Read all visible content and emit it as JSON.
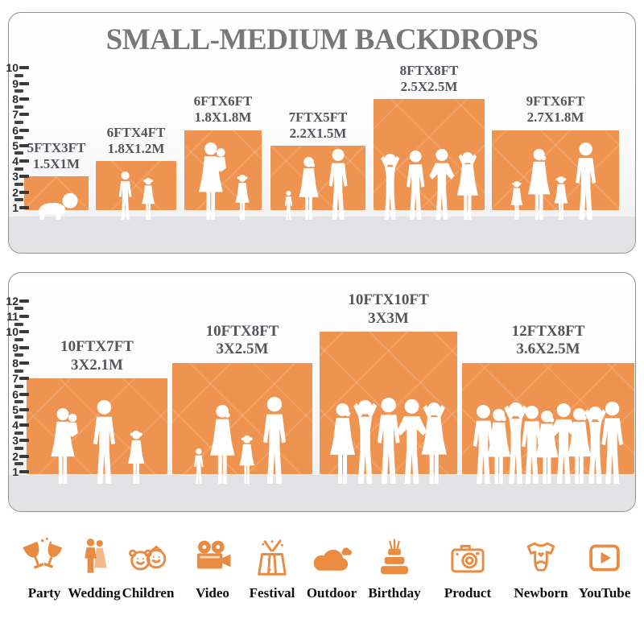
{
  "title": "SMALL-MEDIUM BACKDROPS",
  "colors": {
    "backdrop_orange": "#EF9351",
    "icon_orange": "#E98B41",
    "title_gray": "#77787A",
    "label_gray": "#54555A",
    "silhouette_white": "#FFFFFF"
  },
  "panels": [
    {
      "name": "upper-size-panel",
      "scale_labels": [
        "10",
        "9",
        "8",
        "7",
        "6",
        "5",
        "4",
        "3",
        "2",
        "1"
      ],
      "bars": [
        {
          "size_ft": "5FTX3FT",
          "size_m": "1.5X1M",
          "width_ft": 5,
          "height_ft": 3,
          "figures": "crawling-baby"
        },
        {
          "size_ft": "6FTX4FT",
          "size_m": "1.8X1.2M",
          "width_ft": 6,
          "height_ft": 4,
          "figures": "boy-and-girl"
        },
        {
          "size_ft": "6FTX6FT",
          "size_m": "1.8X1.8M",
          "width_ft": 6,
          "height_ft": 6,
          "figures": "mother-holding-baby-and-girl"
        },
        {
          "size_ft": "7FTX5FT",
          "size_m": "2.2X1.5M",
          "width_ft": 7,
          "height_ft": 5,
          "figures": "toddler-woman-man"
        },
        {
          "size_ft": "8FTX8FT",
          "size_m": "2.5X2.5M",
          "width_ft": 8,
          "height_ft": 8,
          "figures": "group-posing"
        },
        {
          "size_ft": "9FTX6FT",
          "size_m": "2.7X1.8M",
          "width_ft": 9,
          "height_ft": 6,
          "figures": "family-holding-hands"
        }
      ]
    },
    {
      "name": "lower-size-panel",
      "scale_labels": [
        "12",
        "11",
        "10",
        "9",
        "8",
        "7",
        "6",
        "5",
        "4",
        "3",
        "2",
        "1"
      ],
      "bars": [
        {
          "size_ft": "10FTX7FT",
          "size_m": "3X2.1M",
          "width_ft": 10,
          "height_ft": 7,
          "figures": "couple-with-child"
        },
        {
          "size_ft": "10FTX8FT",
          "size_m": "3X2.5M",
          "width_ft": 10,
          "height_ft": 8,
          "figures": "family-holding-hands-large"
        },
        {
          "size_ft": "10FTX10FT",
          "size_m": "3X3M",
          "width_ft": 10,
          "height_ft": 10,
          "figures": "group-posing-large"
        },
        {
          "size_ft": "12FTX8FT",
          "size_m": "3.6X2.5M",
          "width_ft": 12,
          "height_ft": 8,
          "figures": "crowd"
        }
      ]
    }
  ],
  "categories": [
    {
      "label": "Party",
      "icon": "party-icon"
    },
    {
      "label": "Wedding",
      "icon": "wedding-icon"
    },
    {
      "label": "Children",
      "icon": "children-icon"
    },
    {
      "label": "Video",
      "icon": "video-icon"
    },
    {
      "label": "Festival",
      "icon": "festival-icon"
    },
    {
      "label": "Outdoor",
      "icon": "outdoor-icon"
    },
    {
      "label": "Birthday",
      "icon": "birthday-icon"
    },
    {
      "label": "Product",
      "icon": "product-icon"
    },
    {
      "label": "Newborn",
      "icon": "newborn-icon"
    },
    {
      "label": "YouTube",
      "icon": "youtube-icon"
    }
  ]
}
